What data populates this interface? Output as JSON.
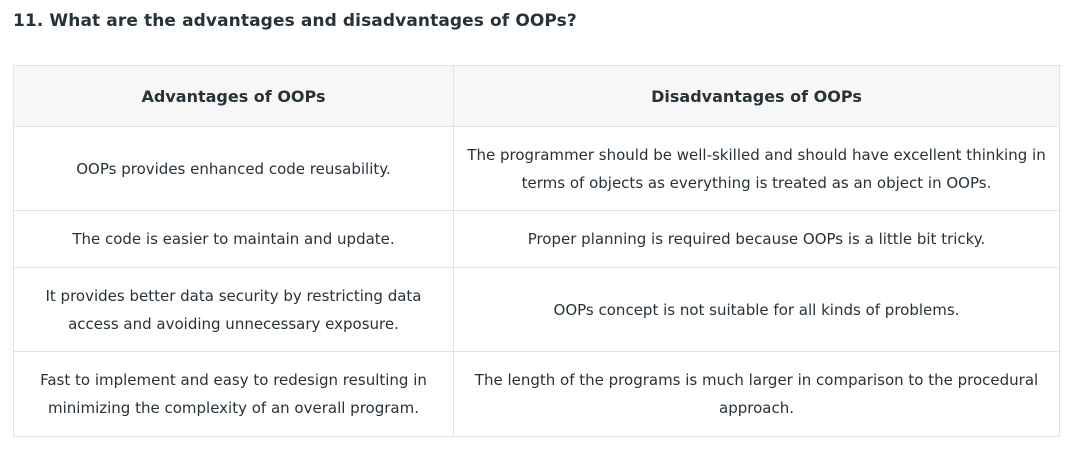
{
  "question": {
    "title": "11. What are the advantages and disadvantages of OOPs?"
  },
  "table": {
    "headers": [
      "Advantages of OOPs",
      "Disadvantages of OOPs"
    ],
    "rows": [
      {
        "advantage": "OOPs provides enhanced code reusability.",
        "disadvantage": "The programmer should be well-skilled and should have excellent thinking in terms of objects as everything is treated as an object in OOPs."
      },
      {
        "advantage": "The code is easier to maintain and update.",
        "disadvantage": "Proper planning is required because OOPs is a little bit tricky."
      },
      {
        "advantage": "It provides better data security by restricting data access and avoiding unnecessary exposure.",
        "disadvantage": "OOPs concept is not suitable for all kinds of problems."
      },
      {
        "advantage": "Fast to implement and easy to redesign resulting in minimizing the complexity of an overall program.",
        "disadvantage": "The length of the programs is much larger in comparison to the procedural approach."
      }
    ]
  }
}
